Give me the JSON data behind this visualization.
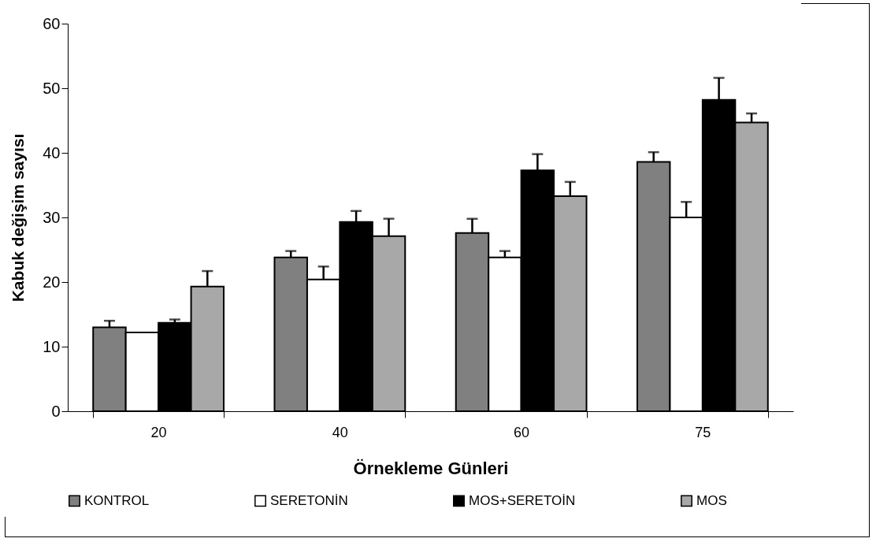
{
  "chart_data": {
    "type": "bar",
    "xlabel": "Örnekleme Günleri",
    "ylabel": "Kabuk değişim sayısı",
    "categories": [
      "20",
      "40",
      "60",
      "75"
    ],
    "series": [
      {
        "name": "KONTROL",
        "color": "#808080",
        "values": [
          13.0,
          23.8,
          27.6,
          38.6
        ],
        "errors": [
          [
            13.0,
            14.0
          ],
          [
            23.8,
            24.8
          ],
          [
            27.6,
            29.8
          ],
          [
            38.6,
            40.1
          ]
        ]
      },
      {
        "name": "SERETONİN",
        "color": "#ffffff",
        "values": [
          12.2,
          20.4,
          23.8,
          30.0
        ],
        "errors": [
          null,
          [
            20.4,
            22.4
          ],
          [
            23.8,
            24.8
          ],
          [
            30.0,
            32.4
          ]
        ]
      },
      {
        "name": "MOS+SERETOİN",
        "color": "#000000",
        "values": [
          13.7,
          29.3,
          37.3,
          48.2
        ],
        "errors": [
          [
            13.7,
            14.2
          ],
          [
            29.3,
            31.0
          ],
          [
            37.3,
            39.8
          ],
          [
            48.2,
            51.6
          ]
        ]
      },
      {
        "name": "MOS",
        "color": "#a8a8a8",
        "values": [
          19.3,
          27.1,
          33.3,
          44.7
        ],
        "errors": [
          [
            19.3,
            21.7
          ],
          [
            27.1,
            29.8
          ],
          [
            33.3,
            35.5
          ],
          [
            44.7,
            46.1
          ]
        ]
      }
    ],
    "ylim": [
      0,
      60
    ],
    "yticks": [
      0,
      10,
      20,
      30,
      40,
      50,
      60
    ],
    "grid": false,
    "legend": "bottom"
  }
}
